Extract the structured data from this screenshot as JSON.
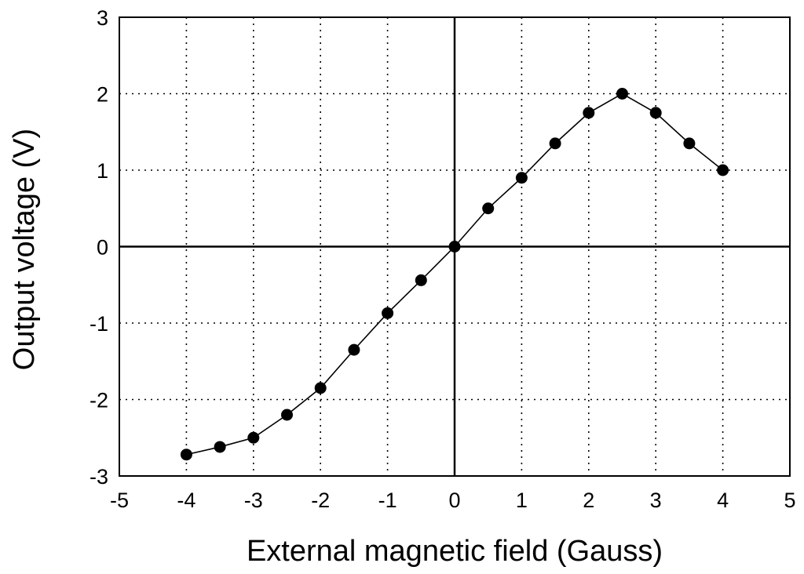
{
  "chart_data": {
    "type": "line",
    "title": "",
    "xlabel": "External magnetic field (Gauss)",
    "ylabel": "Output voltage (V)",
    "xlim": [
      -5,
      5
    ],
    "ylim": [
      -3,
      3
    ],
    "xticks": [
      -5,
      -4,
      -3,
      -2,
      -1,
      0,
      1,
      2,
      3,
      4,
      5
    ],
    "yticks": [
      -3,
      -2,
      -1,
      0,
      1,
      2,
      3
    ],
    "grid": true,
    "legend": "none",
    "series": [
      {
        "x": [
          -4,
          -3.5,
          -3,
          -2.5,
          -2,
          -1.5,
          -1,
          -0.5,
          0,
          0.5,
          1,
          1.5,
          2,
          2.5,
          3,
          3.5,
          4
        ],
        "y": [
          -2.72,
          -2.62,
          -2.5,
          -2.2,
          -1.85,
          -1.35,
          -0.87,
          -0.44,
          0,
          0.5,
          0.9,
          1.35,
          1.75,
          2.0,
          1.75,
          1.35,
          1.0
        ]
      }
    ]
  }
}
